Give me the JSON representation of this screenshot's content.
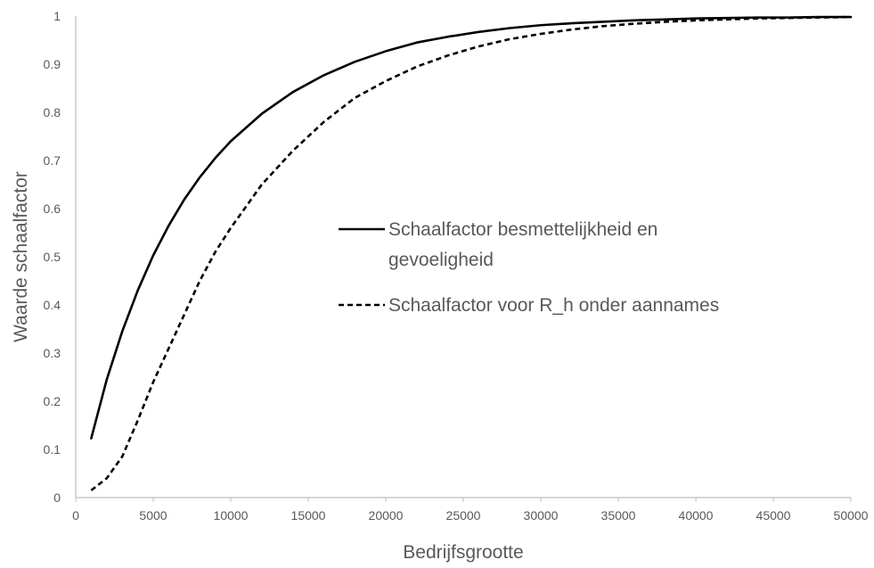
{
  "chart_data": {
    "type": "line",
    "title": "",
    "xlabel": "Bedrijfsgrootte",
    "ylabel": "Waarde schaalfactor",
    "xlim": [
      0,
      50000
    ],
    "ylim": [
      0,
      1
    ],
    "grid": false,
    "legend_position": "center-right",
    "x_ticks": [
      0,
      5000,
      10000,
      15000,
      20000,
      25000,
      30000,
      35000,
      40000,
      45000,
      50000
    ],
    "x_tick_labels": [
      "0",
      "5000",
      "10000",
      "15000",
      "20000",
      "25000",
      "30000",
      "35000",
      "40000",
      "45000",
      "50000"
    ],
    "y_ticks": [
      0,
      0.1,
      0.2,
      0.3,
      0.4,
      0.5,
      0.6,
      0.7,
      0.8,
      0.9,
      1
    ],
    "y_tick_labels": [
      "0",
      "0.1",
      "0.2",
      "0.3",
      "0.4",
      "0.5",
      "0.6",
      "0.7",
      "0.8",
      "0.9",
      "1"
    ],
    "x": [
      1000,
      2000,
      3000,
      4000,
      5000,
      6000,
      7000,
      8000,
      9000,
      10000,
      12000,
      14000,
      16000,
      18000,
      20000,
      22000,
      24000,
      26000,
      28000,
      30000,
      32000,
      34000,
      36000,
      38000,
      40000,
      42000,
      44000,
      46000,
      48000,
      50000
    ],
    "series": [
      {
        "name": "Schaalfactor besmettelijkheid en gevoeligheid",
        "line_style": "solid",
        "color": "#000000",
        "values": [
          0.123,
          0.245,
          0.345,
          0.43,
          0.503,
          0.565,
          0.619,
          0.665,
          0.705,
          0.74,
          0.797,
          0.842,
          0.877,
          0.905,
          0.927,
          0.945,
          0.957,
          0.967,
          0.975,
          0.981,
          0.985,
          0.988,
          0.991,
          0.993,
          0.995,
          0.996,
          0.997,
          0.997,
          0.998,
          0.998
        ]
      },
      {
        "name": "Schaalfactor voor R_h onder aannames",
        "line_style": "dashed",
        "color": "#000000",
        "values": [
          0.015,
          0.04,
          0.085,
          0.16,
          0.24,
          0.31,
          0.38,
          0.45,
          0.51,
          0.56,
          0.65,
          0.72,
          0.78,
          0.83,
          0.865,
          0.895,
          0.918,
          0.937,
          0.952,
          0.963,
          0.972,
          0.979,
          0.984,
          0.988,
          0.991,
          0.993,
          0.995,
          0.996,
          0.997,
          0.998
        ]
      }
    ]
  }
}
